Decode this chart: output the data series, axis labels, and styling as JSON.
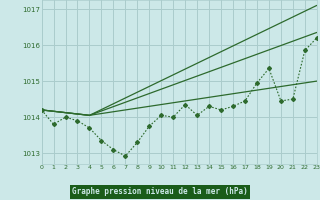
{
  "bg_color": "#cce8e8",
  "plot_bg": "#cce8e8",
  "grid_color": "#aacccc",
  "line_color": "#2d6a2d",
  "title": "Graphe pression niveau de la mer (hPa)",
  "title_bg": "#1a5c1a",
  "title_fg": "#cce8e8",
  "xlim": [
    0,
    23
  ],
  "ylim": [
    1012.7,
    1017.25
  ],
  "yticks": [
    1013,
    1014,
    1015,
    1016,
    1017
  ],
  "xticks": [
    0,
    1,
    2,
    3,
    4,
    5,
    6,
    7,
    8,
    9,
    10,
    11,
    12,
    13,
    14,
    15,
    16,
    17,
    18,
    19,
    20,
    21,
    22,
    23
  ],
  "main_x": [
    0,
    1,
    2,
    3,
    4,
    5,
    6,
    7,
    8,
    9,
    10,
    11,
    12,
    13,
    14,
    15,
    16,
    17,
    18,
    19,
    20,
    21,
    22,
    23
  ],
  "main_y": [
    1014.2,
    1013.8,
    1014.0,
    1013.9,
    1013.7,
    1013.35,
    1013.1,
    1012.92,
    1013.3,
    1013.75,
    1014.05,
    1014.0,
    1014.35,
    1014.05,
    1014.3,
    1014.2,
    1014.3,
    1014.45,
    1014.95,
    1015.35,
    1014.45,
    1014.5,
    1015.85,
    1016.2
  ],
  "line1_x": [
    0,
    4,
    23
  ],
  "line1_y": [
    1014.2,
    1014.05,
    1017.1
  ],
  "line2_x": [
    0,
    4,
    23
  ],
  "line2_y": [
    1014.2,
    1014.05,
    1016.35
  ],
  "line3_x": [
    0,
    4,
    23
  ],
  "line3_y": [
    1014.2,
    1014.05,
    1015.0
  ]
}
